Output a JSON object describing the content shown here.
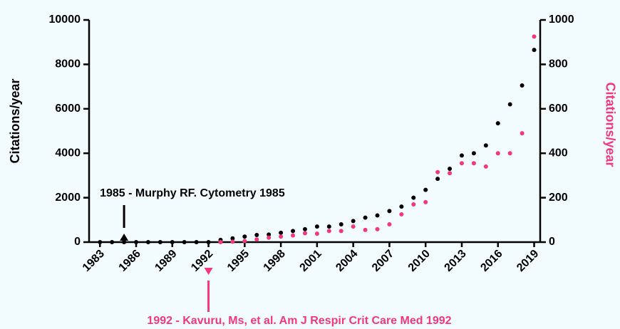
{
  "chart_data": {
    "type": "scatter",
    "x": [
      1983,
      1984,
      1985,
      1986,
      1987,
      1988,
      1989,
      1990,
      1991,
      1992,
      1993,
      1994,
      1995,
      1996,
      1997,
      1998,
      1999,
      2000,
      2001,
      2002,
      2003,
      2004,
      2005,
      2006,
      2007,
      2008,
      2009,
      2010,
      2011,
      2012,
      2013,
      2014,
      2015,
      2016,
      2017,
      2018,
      2019
    ],
    "series": [
      {
        "name": "Citations/year",
        "color": "#000000",
        "axis": "y",
        "values": [
          0,
          0,
          0,
          0,
          0,
          0,
          0,
          0,
          0,
          0,
          100,
          170,
          250,
          320,
          340,
          420,
          500,
          580,
          700,
          700,
          800,
          950,
          1100,
          1200,
          1400,
          1600,
          2000,
          2350,
          2850,
          3300,
          3900,
          4000,
          4350,
          5350,
          6200,
          7050,
          8650
        ]
      },
      {
        "name": "Citations/year",
        "color": "#f2377f",
        "axis": "y2",
        "values": [
          null,
          null,
          null,
          null,
          null,
          null,
          null,
          null,
          null,
          null,
          0,
          2,
          5,
          12,
          20,
          25,
          30,
          40,
          38,
          50,
          50,
          70,
          55,
          58,
          80,
          125,
          170,
          180,
          315,
          310,
          355,
          355,
          340,
          400,
          400,
          490,
          925
        ]
      }
    ],
    "ylabel": "Citations/year",
    "y2label": "Citations/year",
    "xlim": [
      1982.1,
      2019.5
    ],
    "xticks": [
      1983,
      1986,
      1989,
      1992,
      1995,
      1998,
      2001,
      2004,
      2007,
      2010,
      2013,
      2016,
      2019
    ],
    "ylim": [
      0,
      10000
    ],
    "yticks": [
      0,
      2000,
      4000,
      6000,
      8000,
      10000
    ],
    "y2lim": [
      0,
      1000
    ],
    "y2ticks": [
      0,
      200,
      400,
      600,
      800,
      1000
    ],
    "annotations": [
      {
        "text": "1985 - Murphy RF. Cytometry 1985",
        "x": 1985,
        "color": "#000000"
      },
      {
        "text": "1992 - Kavuru, Ms, et al. Am J Respir Crit Care Med 1992",
        "x": 1992,
        "color": "#f2377f"
      }
    ]
  }
}
